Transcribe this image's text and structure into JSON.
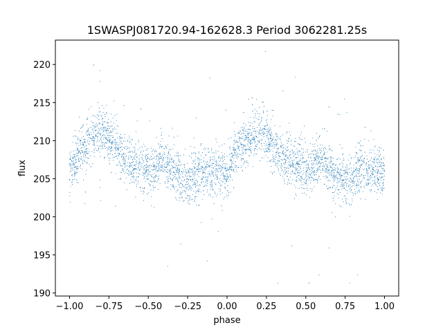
{
  "chart_data": {
    "type": "scatter",
    "title": "1SWASPJ081720.94-162628.3 Period 3062281.25s",
    "xlabel": "phase",
    "ylabel": "flux",
    "xlim": [
      -1.09,
      1.09
    ],
    "ylim": [
      189.6,
      223.2
    ],
    "grid": false,
    "marker_color": "#1f77b4",
    "x_ticks": [
      -1.0,
      -0.75,
      -0.5,
      -0.25,
      0.0,
      0.25,
      0.5,
      0.75,
      1.0
    ],
    "x_tick_labels": [
      "−1.00",
      "−0.75",
      "−0.50",
      "−0.25",
      "0.00",
      "0.25",
      "0.50",
      "0.75",
      "1.00"
    ],
    "y_ticks": [
      190,
      195,
      200,
      205,
      210,
      215,
      220
    ],
    "y_tick_labels": [
      "190",
      "195",
      "200",
      "205",
      "210",
      "215",
      "220"
    ],
    "series": [
      {
        "phase_range": [
          -1.0,
          1.0
        ],
        "periodic_with_period": 1.0,
        "mean_flux_profile": {
          "phase": [
            0.0,
            0.04,
            0.08,
            0.12,
            0.16,
            0.2,
            0.24,
            0.28,
            0.32,
            0.36,
            0.4,
            0.44,
            0.48,
            0.52,
            0.56,
            0.6,
            0.64,
            0.68,
            0.72,
            0.76,
            0.8,
            0.84,
            0.88,
            0.92,
            0.96
          ],
          "flux": [
            205.8,
            207.8,
            208.8,
            209.5,
            210.8,
            211.3,
            210.9,
            209.6,
            208.4,
            207.6,
            207.2,
            207.0,
            206.5,
            205.9,
            206.8,
            207.8,
            206.5,
            205.6,
            205.0,
            204.6,
            205.5,
            205.9,
            206.0,
            206.0,
            205.9
          ]
        },
        "typical_scatter": 1.6,
        "flux_extremes": [
          191.3,
          221.8
        ]
      }
    ]
  }
}
